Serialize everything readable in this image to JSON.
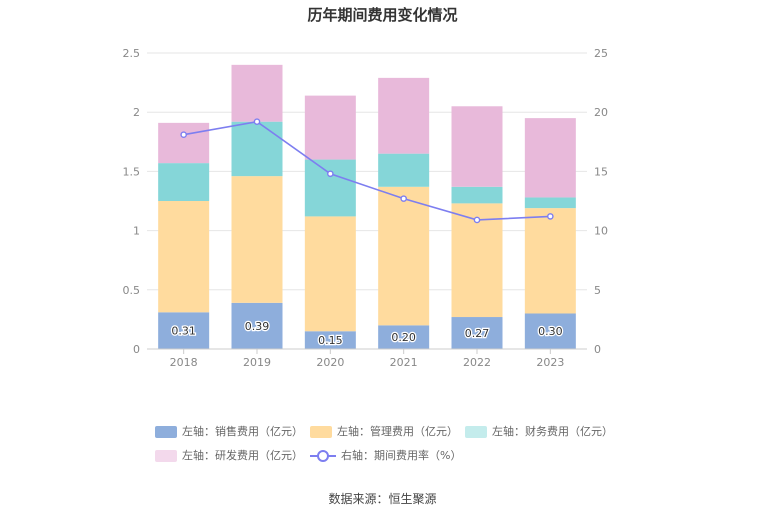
{
  "title": "历年期间费用变化情况",
  "source": "数据来源：恒生聚源",
  "chart_data": {
    "type": "bar",
    "stacked": true,
    "categories": [
      "2018",
      "2019",
      "2020",
      "2021",
      "2022",
      "2023"
    ],
    "left_axis": {
      "ylim": [
        0,
        2.5
      ],
      "ticks": [
        "0",
        "0.5",
        "1",
        "1.5",
        "2",
        "2.5"
      ]
    },
    "right_axis": {
      "ylim": [
        0,
        25
      ],
      "ticks": [
        "0",
        "5",
        "10",
        "15",
        "20",
        "25"
      ]
    },
    "series": [
      {
        "name": "左轴：销售费用（亿元）",
        "color": "#8eaedc",
        "values": [
          0.31,
          0.39,
          0.15,
          0.2,
          0.27,
          0.3
        ],
        "labels": [
          "0.31",
          "0.39",
          "0.15",
          "0.20",
          "0.27",
          "0.30"
        ]
      },
      {
        "name": "左轴：管理费用（亿元）",
        "color": "#ffdb9e",
        "values": [
          0.94,
          1.07,
          0.97,
          1.17,
          0.96,
          0.89
        ]
      },
      {
        "name": "左轴：财务费用（亿元）",
        "color": "#85d6d8",
        "values": [
          0.32,
          0.46,
          0.48,
          0.28,
          0.14,
          0.09
        ]
      },
      {
        "name": "左轴：研发费用（亿元）",
        "color": "#e8b9da",
        "values": [
          0.34,
          0.48,
          0.54,
          0.64,
          0.68,
          0.67
        ]
      }
    ],
    "line_series": {
      "name": "右轴：期间费用率（%）",
      "color": "#7d7ef0",
      "axis": "right",
      "values": [
        18.1,
        19.2,
        14.8,
        12.7,
        10.9,
        11.2
      ]
    },
    "grid": true,
    "legend_position": "bottom"
  },
  "legend": [
    {
      "label": "左轴：销售费用（亿元）",
      "color": "#8eaedc",
      "kind": "box"
    },
    {
      "label": "左轴：管理费用（亿元）",
      "color": "#ffdb9e",
      "kind": "box"
    },
    {
      "label": "左轴：财务费用（亿元）",
      "color": "#c4ecec",
      "kind": "box"
    },
    {
      "label": "左轴：研发费用（亿元）",
      "color": "#f3d9ec",
      "kind": "box"
    },
    {
      "label": "右轴：期间费用率（%）",
      "color": "#7d7ef0",
      "kind": "line"
    }
  ]
}
